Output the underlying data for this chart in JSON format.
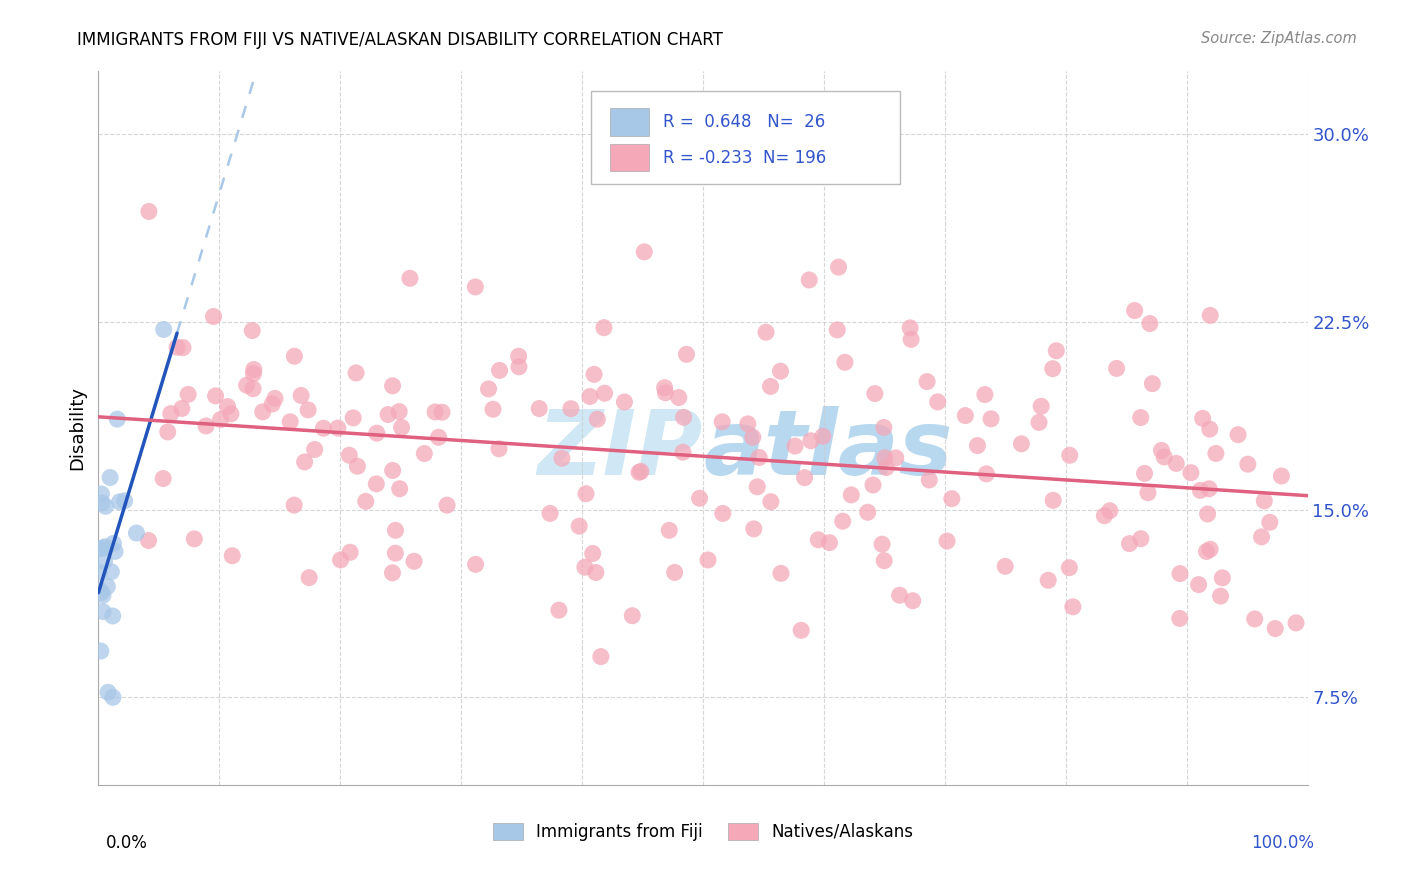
{
  "title": "IMMIGRANTS FROM FIJI VS NATIVE/ALASKAN DISABILITY CORRELATION CHART",
  "source": "Source: ZipAtlas.com",
  "ylabel": "Disability",
  "ytick_labels": [
    "7.5%",
    "15.0%",
    "22.5%",
    "30.0%"
  ],
  "ytick_values": [
    0.075,
    0.15,
    0.225,
    0.3
  ],
  "xmin": 0.0,
  "xmax": 1.0,
  "ymin": 0.04,
  "ymax": 0.325,
  "fiji_R": 0.648,
  "fiji_N": 26,
  "native_R": -0.233,
  "native_N": 196,
  "fiji_color": "#a8c8e8",
  "native_color": "#f4a8b8",
  "fiji_line_color": "#2255bb",
  "native_line_color": "#e06080",
  "dashed_line_color": "#a8c8e8",
  "legend_text_color": "#3355cc",
  "watermark_color": "#d0e8f5",
  "background_color": "#ffffff",
  "fiji_seed": 777,
  "native_seed": 888
}
